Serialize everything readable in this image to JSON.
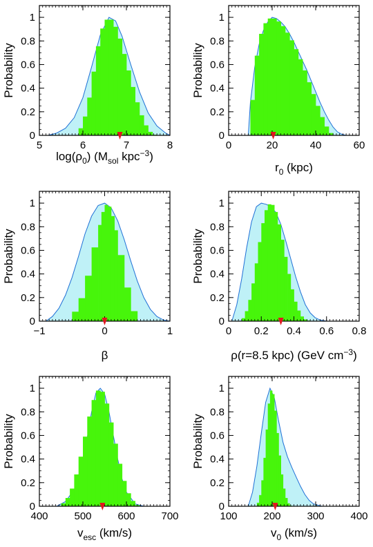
{
  "colors": {
    "prior_fill": "#bff1f7",
    "prior_line": "#1f6fd6",
    "posterior_fill": "#47f50b",
    "marker": "#e0171f"
  },
  "y_axis_label": "Probability",
  "chart_data": [
    {
      "id": "log-rho0",
      "type": "area",
      "ylabel": "Probability",
      "xlabel": {
        "base": "log(ρ",
        "sub": "0",
        "mid": ") (M",
        "sub2": "sol",
        "mid2": " kpc",
        "sup": "−3",
        "end": ")"
      },
      "xlim": [
        5,
        8
      ],
      "ylim": [
        0,
        1.1
      ],
      "xticks": [
        5,
        6,
        7,
        8
      ],
      "xtick_labels": [
        "5",
        "6",
        "7",
        "8"
      ],
      "yticks": [
        0,
        0.2,
        0.4,
        0.6,
        0.8,
        1
      ],
      "ytick_labels": [
        "0",
        "0.2",
        "0.4",
        "0.6",
        "0.8",
        "1"
      ],
      "prior_curve": {
        "x": [
          5.2,
          5.4,
          5.6,
          5.8,
          6.0,
          6.2,
          6.4,
          6.6,
          6.75,
          6.9,
          7.1,
          7.3,
          7.5,
          7.7,
          7.9,
          8.0
        ],
        "y": [
          0.0,
          0.02,
          0.06,
          0.15,
          0.32,
          0.58,
          0.85,
          1.0,
          0.97,
          0.84,
          0.6,
          0.37,
          0.19,
          0.08,
          0.02,
          0.0
        ]
      },
      "posterior_hist": {
        "x": [
          5.9,
          6.0,
          6.1,
          6.2,
          6.3,
          6.4,
          6.5,
          6.6,
          6.7,
          6.8,
          6.9,
          7.0,
          7.1,
          7.2,
          7.3,
          7.4,
          7.5,
          7.6,
          7.7
        ],
        "y": [
          0.02,
          0.1,
          0.22,
          0.42,
          0.66,
          0.85,
          0.96,
          1.0,
          0.96,
          0.88,
          0.76,
          0.62,
          0.48,
          0.34,
          0.22,
          0.12,
          0.05,
          0.01,
          0.0
        ]
      },
      "marker_x": 6.85
    },
    {
      "id": "r0",
      "type": "area",
      "ylabel": "Probability",
      "xlabel": {
        "base": "r",
        "sub": "0",
        "mid": " (kpc)"
      },
      "xlim": [
        0,
        60
      ],
      "ylim": [
        0,
        1.1
      ],
      "xticks": [
        0,
        20,
        40,
        60
      ],
      "xtick_labels": [
        "0",
        "20",
        "40",
        "60"
      ],
      "yticks": [
        0,
        0.2,
        0.4,
        0.6,
        0.8,
        1
      ],
      "ytick_labels": [
        "0",
        "0.2",
        "0.4",
        "0.6",
        "0.8",
        "1"
      ],
      "prior_curve": {
        "x": [
          9,
          10,
          12,
          14,
          16,
          18,
          20,
          22,
          24,
          26,
          28,
          30,
          32,
          34,
          36,
          38,
          40,
          42,
          44,
          46,
          48,
          50,
          52,
          54,
          55
        ],
        "y": [
          0.0,
          0.28,
          0.58,
          0.77,
          0.89,
          0.96,
          1.0,
          0.99,
          0.96,
          0.92,
          0.86,
          0.79,
          0.71,
          0.63,
          0.55,
          0.46,
          0.37,
          0.28,
          0.2,
          0.13,
          0.07,
          0.03,
          0.01,
          0.0,
          0.0
        ]
      },
      "posterior_hist": {
        "x": [
          10,
          12,
          14,
          16,
          18,
          20,
          22,
          24,
          26,
          28,
          30,
          32,
          34,
          36,
          38,
          40,
          42,
          44,
          46,
          48
        ],
        "y": [
          0.05,
          0.55,
          0.8,
          0.92,
          0.98,
          1.0,
          0.98,
          0.95,
          0.9,
          0.84,
          0.77,
          0.69,
          0.6,
          0.5,
          0.4,
          0.3,
          0.2,
          0.11,
          0.04,
          0.0
        ]
      },
      "marker_x": 20.5
    },
    {
      "id": "beta",
      "type": "area",
      "ylabel": "Probability",
      "xlabel": {
        "base": "β"
      },
      "xlim": [
        -1,
        1
      ],
      "ylim": [
        0,
        1.1
      ],
      "xticks": [
        -1,
        0,
        1
      ],
      "xtick_labels": [
        "−1",
        "0",
        "1"
      ],
      "yticks": [
        0,
        0.2,
        0.4,
        0.6,
        0.8,
        1
      ],
      "ytick_labels": [
        "0",
        "0.2",
        "0.4",
        "0.6",
        "0.8",
        "1"
      ],
      "prior_curve": {
        "x": [
          -0.9,
          -0.8,
          -0.7,
          -0.6,
          -0.5,
          -0.4,
          -0.3,
          -0.2,
          -0.1,
          0.0,
          0.1,
          0.2,
          0.3,
          0.4,
          0.5,
          0.6,
          0.7,
          0.8,
          0.9,
          1.0
        ],
        "y": [
          0.0,
          0.04,
          0.11,
          0.22,
          0.37,
          0.55,
          0.74,
          0.89,
          0.98,
          1.0,
          0.96,
          0.85,
          0.69,
          0.51,
          0.34,
          0.2,
          0.1,
          0.04,
          0.01,
          0.0
        ]
      },
      "posterior_hist": {
        "x": [
          -0.5,
          -0.4,
          -0.3,
          -0.2,
          -0.1,
          -0.05,
          0.0,
          0.05,
          0.1,
          0.15,
          0.2,
          0.3,
          0.4,
          0.5
        ],
        "y": [
          0.04,
          0.12,
          0.27,
          0.5,
          0.75,
          0.88,
          0.97,
          1.0,
          0.94,
          0.84,
          0.7,
          0.42,
          0.15,
          0.02
        ]
      },
      "marker_x": 0.0
    },
    {
      "id": "rho-local",
      "type": "area",
      "ylabel": "Probability",
      "xlabel": {
        "base": "ρ(r=8.5 kpc) (GeV cm",
        "sup": "−3",
        "end": ")"
      },
      "xlim": [
        0,
        0.8
      ],
      "ylim": [
        0,
        1.1
      ],
      "xticks": [
        0,
        0.2,
        0.4,
        0.6,
        0.8
      ],
      "xtick_labels": [
        "0",
        "0.2",
        "0.4",
        "0.6",
        "0.8"
      ],
      "yticks": [
        0,
        0.2,
        0.4,
        0.6,
        0.8,
        1
      ],
      "ytick_labels": [
        "0",
        "0.2",
        "0.4",
        "0.6",
        "0.8",
        "1"
      ],
      "prior_curve": {
        "x": [
          0.02,
          0.05,
          0.08,
          0.11,
          0.14,
          0.17,
          0.2,
          0.23,
          0.26,
          0.29,
          0.32,
          0.35,
          0.38,
          0.41,
          0.44,
          0.47,
          0.5,
          0.53,
          0.56,
          0.6
        ],
        "y": [
          0.0,
          0.14,
          0.36,
          0.62,
          0.84,
          0.97,
          1.0,
          0.99,
          0.97,
          0.92,
          0.82,
          0.68,
          0.53,
          0.38,
          0.25,
          0.14,
          0.07,
          0.03,
          0.01,
          0.0
        ]
      },
      "posterior_hist": {
        "x": [
          0.08,
          0.1,
          0.12,
          0.14,
          0.16,
          0.18,
          0.2,
          0.22,
          0.24,
          0.26,
          0.28,
          0.3,
          0.32,
          0.34,
          0.36,
          0.38,
          0.4,
          0.42,
          0.44,
          0.46,
          0.48,
          0.5
        ],
        "y": [
          0.0,
          0.05,
          0.12,
          0.24,
          0.4,
          0.58,
          0.76,
          0.9,
          0.98,
          1.0,
          0.97,
          0.88,
          0.76,
          0.62,
          0.47,
          0.33,
          0.21,
          0.12,
          0.06,
          0.02,
          0.01,
          0.0
        ]
      },
      "marker_x": 0.32
    },
    {
      "id": "vesc",
      "type": "area",
      "ylabel": "Probability",
      "xlabel": {
        "base": "v",
        "sub": "esc",
        "mid": " (km/s)"
      },
      "xlim": [
        400,
        700
      ],
      "ylim": [
        0,
        1.1
      ],
      "xticks": [
        400,
        500,
        600,
        700
      ],
      "xtick_labels": [
        "400",
        "500",
        "600",
        "700"
      ],
      "yticks": [
        0,
        0.2,
        0.4,
        0.6,
        0.8,
        1
      ],
      "ytick_labels": [
        "0",
        "0.2",
        "0.4",
        "0.6",
        "0.8",
        "1"
      ],
      "prior_curve": {
        "x": [
          440,
          460,
          480,
          500,
          510,
          520,
          530,
          540,
          550,
          560,
          570,
          580,
          590,
          600,
          620,
          640
        ],
        "y": [
          0.0,
          0.04,
          0.14,
          0.38,
          0.58,
          0.8,
          0.96,
          1.0,
          0.95,
          0.8,
          0.6,
          0.4,
          0.23,
          0.12,
          0.02,
          0.0
        ]
      },
      "posterior_hist": {
        "x": [
          450,
          460,
          470,
          480,
          490,
          500,
          510,
          520,
          530,
          540,
          550,
          560,
          570,
          580,
          590,
          600,
          610,
          620,
          630
        ],
        "y": [
          0.01,
          0.04,
          0.1,
          0.2,
          0.34,
          0.5,
          0.68,
          0.84,
          0.96,
          1.0,
          0.94,
          0.8,
          0.62,
          0.44,
          0.28,
          0.15,
          0.07,
          0.02,
          0.0
        ]
      },
      "marker_x": 545
    },
    {
      "id": "v0",
      "type": "area",
      "ylabel": "Probability",
      "xlabel": {
        "base": "v",
        "sub": "0",
        "mid": " (km/s)"
      },
      "xlim": [
        100,
        400
      ],
      "ylim": [
        0,
        1.1
      ],
      "xticks": [
        100,
        200,
        300,
        400
      ],
      "xtick_labels": [
        "100",
        "200",
        "300",
        "400"
      ],
      "yticks": [
        0,
        0.2,
        0.4,
        0.6,
        0.8,
        1
      ],
      "ytick_labels": [
        "0",
        "0.2",
        "0.4",
        "0.6",
        "0.8",
        "1"
      ],
      "prior_curve": {
        "x": [
          145,
          155,
          165,
          175,
          185,
          195,
          205,
          215,
          225,
          235,
          245,
          255,
          265,
          275,
          285,
          295,
          305,
          315
        ],
        "y": [
          0.0,
          0.12,
          0.34,
          0.62,
          0.88,
          1.0,
          0.92,
          0.72,
          0.54,
          0.42,
          0.33,
          0.25,
          0.17,
          0.1,
          0.05,
          0.02,
          0.01,
          0.0
        ]
      },
      "posterior_hist": {
        "x": [
          165,
          170,
          175,
          180,
          185,
          190,
          195,
          200,
          205,
          210,
          215,
          220,
          225,
          230,
          235,
          240,
          245
        ],
        "y": [
          0.01,
          0.05,
          0.14,
          0.3,
          0.52,
          0.78,
          0.96,
          1.0,
          0.9,
          0.72,
          0.52,
          0.34,
          0.2,
          0.1,
          0.04,
          0.01,
          0.0
        ]
      },
      "marker_x": 207
    }
  ]
}
